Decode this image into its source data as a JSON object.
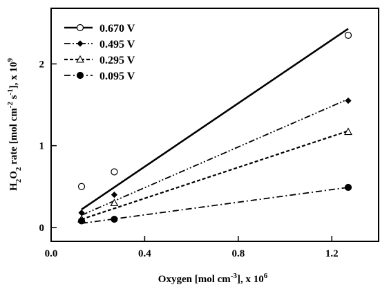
{
  "chart_data": {
    "type": "scatter",
    "title": "",
    "xlabel_parts": {
      "main": "Oxygen [mol cm",
      "sup1": "-3",
      "tail": "], x 10",
      "sup2": "6"
    },
    "ylabel_parts": {
      "a": "H",
      "sub": "2",
      "b": "O",
      "sub2": "2",
      "c": " rate [mol cm",
      "sup1": "-2",
      "d": " s",
      "sup2": "-1",
      "e": "], x 10",
      "sup3": "9"
    },
    "xlim": [
      0.0,
      1.4
    ],
    "ylim": [
      -0.17,
      2.68
    ],
    "xticks": [
      0.0,
      0.4,
      0.8,
      1.2
    ],
    "xtick_labels": [
      "0.0",
      "0.4",
      "0.8",
      "1.2"
    ],
    "yticks": [
      0,
      1,
      2
    ],
    "ytick_labels": [
      "0",
      "1",
      "2"
    ],
    "legend_position": "top-left",
    "grid": false,
    "series": [
      {
        "name": "0.670 V",
        "marker": "open-circle",
        "line": "solid",
        "points": [
          [
            0.13,
            0.5
          ],
          [
            0.27,
            0.68
          ],
          [
            1.27,
            2.35
          ]
        ],
        "fit": [
          [
            0.13,
            0.22
          ],
          [
            1.27,
            2.43
          ]
        ]
      },
      {
        "name": "0.495 V",
        "marker": "filled-diamond",
        "line": "dash-dot-dot",
        "points": [
          [
            0.13,
            0.18
          ],
          [
            0.27,
            0.4
          ],
          [
            1.27,
            1.55
          ]
        ],
        "fit": [
          [
            0.13,
            0.15
          ],
          [
            1.27,
            1.57
          ]
        ]
      },
      {
        "name": "0.295 V",
        "marker": "open-triangle",
        "line": "dashed",
        "points": [
          [
            0.13,
            0.1
          ],
          [
            0.27,
            0.3
          ],
          [
            1.27,
            1.17
          ]
        ],
        "fit": [
          [
            0.13,
            0.1
          ],
          [
            1.27,
            1.18
          ]
        ]
      },
      {
        "name": "0.095 V",
        "marker": "filled-circle",
        "line": "dash-dot",
        "points": [
          [
            0.13,
            0.08
          ],
          [
            0.27,
            0.1
          ],
          [
            1.27,
            0.49
          ]
        ],
        "fit": [
          [
            0.13,
            0.05
          ],
          [
            1.27,
            0.49
          ]
        ]
      }
    ]
  }
}
